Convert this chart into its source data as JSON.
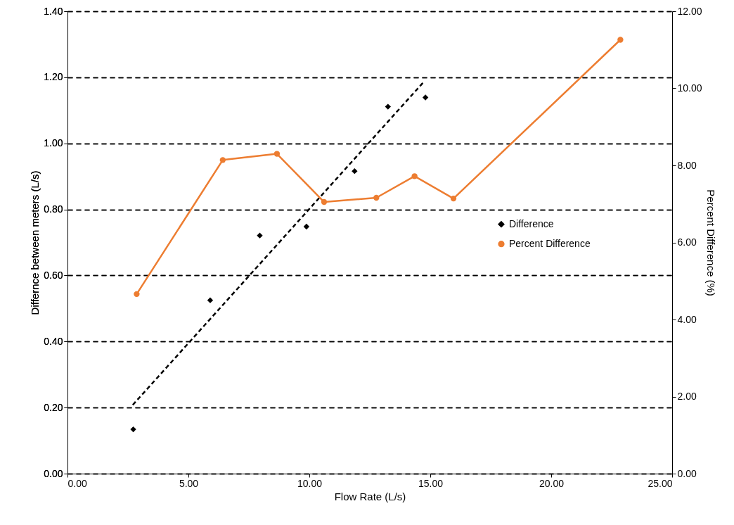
{
  "chart_data": {
    "type": "scatter",
    "xlabel": "Flow Rate (L/s)",
    "ylabel": "Differnce between meters (L/s)",
    "y2label": "Percent Difference (%)",
    "xlim": [
      0,
      25
    ],
    "xticks": [
      {
        "value": 0,
        "label": "0.00"
      },
      {
        "value": 5,
        "label": "5.00"
      },
      {
        "value": 10,
        "label": "10.00"
      },
      {
        "value": 15,
        "label": "15.00"
      },
      {
        "value": 20,
        "label": "20.00"
      },
      {
        "value": 25,
        "label": "25.00"
      }
    ],
    "ylim": [
      0,
      1.4
    ],
    "yticks": [
      {
        "value": 0,
        "label": "0.00"
      },
      {
        "value": 0.2,
        "label": "0.20"
      },
      {
        "value": 0.4,
        "label": "0.40"
      },
      {
        "value": 0.6,
        "label": "0.60"
      },
      {
        "value": 0.8,
        "label": "0.80"
      },
      {
        "value": 1.0,
        "label": "1.00"
      },
      {
        "value": 1.2,
        "label": "1.20"
      },
      {
        "value": 1.4,
        "label": "1.40"
      }
    ],
    "y2lim": [
      0,
      12
    ],
    "y2ticks": [
      {
        "value": 0,
        "label": "0.00"
      },
      {
        "value": 2,
        "label": "2.00"
      },
      {
        "value": 4,
        "label": "4.00"
      },
      {
        "value": 6,
        "label": "6.00"
      },
      {
        "value": 8,
        "label": "8.00"
      },
      {
        "value": 10,
        "label": "10.00"
      },
      {
        "value": 12,
        "label": "12.00"
      }
    ],
    "grid": "y",
    "legend": "right",
    "series": [
      {
        "name": "Difference",
        "marker": "diamond",
        "color": "#000000",
        "x": [
          2.72,
          5.9,
          7.95,
          9.88,
          11.87,
          13.25,
          14.8
        ],
        "values": [
          0.134,
          0.525,
          0.721,
          0.748,
          0.916,
          1.111,
          1.139
        ]
      },
      {
        "type": "line",
        "line_style": "dashed",
        "marker": "none",
        "color": "#000000",
        "x": [
          2.7,
          14.74
        ],
        "values": [
          0.208,
          1.187
        ]
      },
      {
        "name": "Percent Difference",
        "type": "line",
        "axis": "y2",
        "marker": "circle",
        "line_style": "solid",
        "color": "#ed7d31",
        "x": [
          2.86,
          6.42,
          8.66,
          10.61,
          12.77,
          14.35,
          15.96,
          22.86
        ],
        "values": [
          4.66,
          8.14,
          8.3,
          7.05,
          7.16,
          7.72,
          7.14,
          11.26
        ]
      }
    ]
  }
}
